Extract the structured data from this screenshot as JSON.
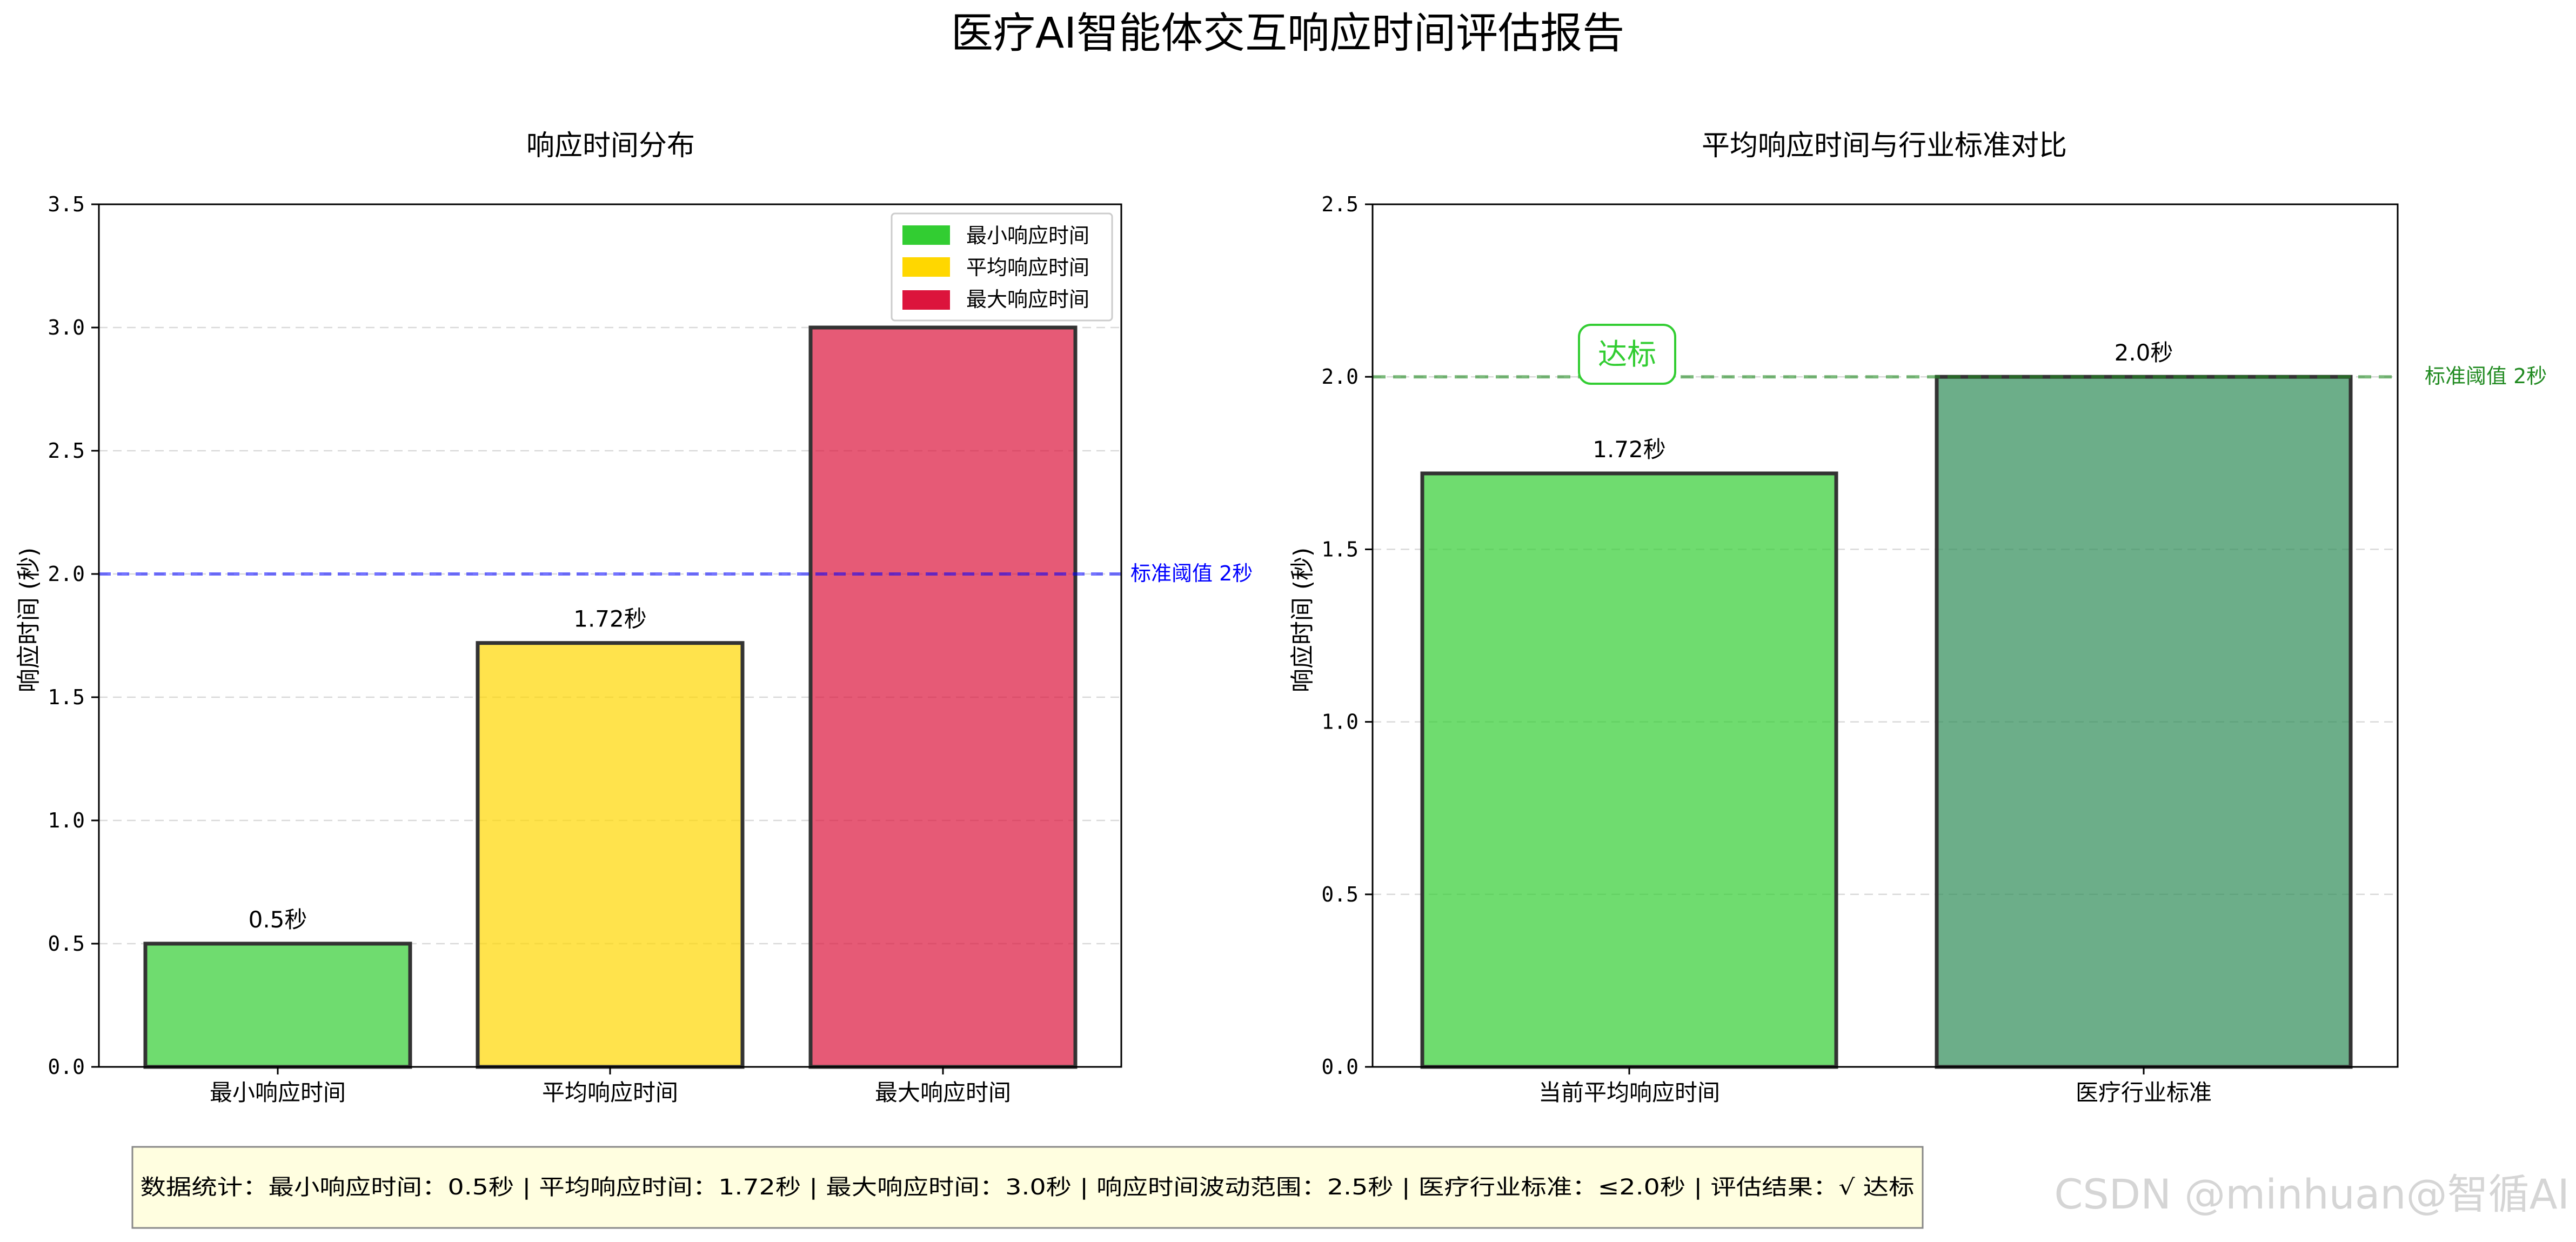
{
  "page": {
    "title": "医疗AI智能体交互响应时间评估报告"
  },
  "colors": {
    "min": "#32CD32",
    "avg": "#FFD700",
    "max": "#DC143C",
    "industry": "#2E8B57",
    "blue_line": "#0000FF",
    "green_line": "#228B22",
    "badge": "#32CD32",
    "summary_bg": "#FFFEE0"
  },
  "chart_data": [
    {
      "type": "bar",
      "title": "响应时间分布",
      "ylabel": "响应时间 (秒)",
      "xlabel": "",
      "categories": [
        "最小响应时间",
        "平均响应时间",
        "最大响应时间"
      ],
      "values": [
        0.5,
        1.72,
        3.0
      ],
      "value_labels": [
        "0.5秒",
        "1.72秒",
        ""
      ],
      "bar_colors": [
        "#32CD32",
        "#FFD700",
        "#DC143C"
      ],
      "ylim": [
        0,
        3.5
      ],
      "yticks": [
        "0.0",
        "0.5",
        "1.0",
        "1.5",
        "2.0",
        "2.5",
        "3.0",
        "3.5"
      ],
      "grid": "y-dashed",
      "legend": {
        "placement": "top-right",
        "entries": [
          {
            "label": "最小响应时间",
            "color": "#32CD32"
          },
          {
            "label": "平均响应时间",
            "color": "#FFD700"
          },
          {
            "label": "最大响应时间",
            "color": "#DC143C"
          }
        ]
      },
      "threshold": {
        "value": 2.0,
        "label": "标准阈值 2秒",
        "color": "#0000FF"
      }
    },
    {
      "type": "bar",
      "title": "平均响应时间与行业标准对比",
      "ylabel": "响应时间 (秒)",
      "xlabel": "",
      "categories": [
        "当前平均响应时间",
        "医疗行业标准"
      ],
      "values": [
        1.72,
        2.0
      ],
      "value_labels": [
        "1.72秒",
        "2.0秒"
      ],
      "bar_colors": [
        "#32CD32",
        "#2E8B57"
      ],
      "ylim": [
        0,
        2.5
      ],
      "yticks": [
        "0.0",
        "0.5",
        "1.0",
        "1.5",
        "2.0",
        "2.5"
      ],
      "grid": "y-dashed",
      "threshold": {
        "value": 2.0,
        "label": "标准阈值 2秒",
        "color": "#228B22"
      },
      "badge": {
        "text": "达标"
      }
    }
  ],
  "summary": {
    "text": "数据统计：最小响应时间：0.5秒 | 平均响应时间：1.72秒 | 最大响应时间：3.0秒 | 响应时间波动范围：2.5秒 | 医疗行业标准：≤2.0秒 | 评估结果：√ 达标"
  },
  "watermark": {
    "text": "CSDN @minhuan@智循AI"
  }
}
